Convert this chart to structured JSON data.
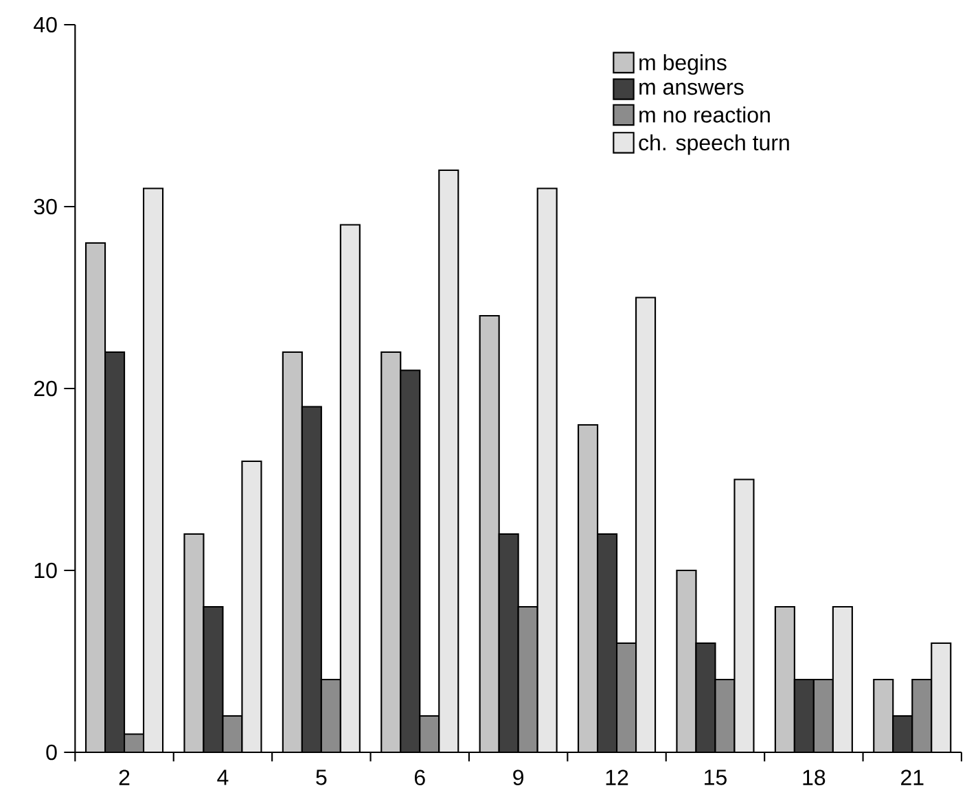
{
  "chart_data": {
    "type": "bar",
    "categories": [
      "2",
      "4",
      "5",
      "6",
      "9",
      "12",
      "15",
      "18",
      "21"
    ],
    "series": [
      {
        "name": "m begins",
        "color": "#c4c4c4",
        "values": [
          28,
          12,
          22,
          22,
          24,
          18,
          10,
          8,
          4
        ]
      },
      {
        "name": "m answers",
        "color": "#404040",
        "values": [
          22,
          8,
          19,
          21,
          12,
          12,
          6,
          4,
          2
        ]
      },
      {
        "name": "m no reaction",
        "color": "#8c8c8c",
        "values": [
          1,
          2,
          4,
          2,
          8,
          6,
          4,
          4,
          4
        ]
      },
      {
        "name": "ch. speech turn",
        "color": "#e6e6e6",
        "values": [
          31,
          16,
          29,
          32,
          31,
          25,
          15,
          8,
          6
        ]
      }
    ],
    "ylim": [
      0,
      40
    ],
    "yticks": [
      0,
      10,
      20,
      30,
      40
    ],
    "legend": "top right",
    "grid": false
  }
}
